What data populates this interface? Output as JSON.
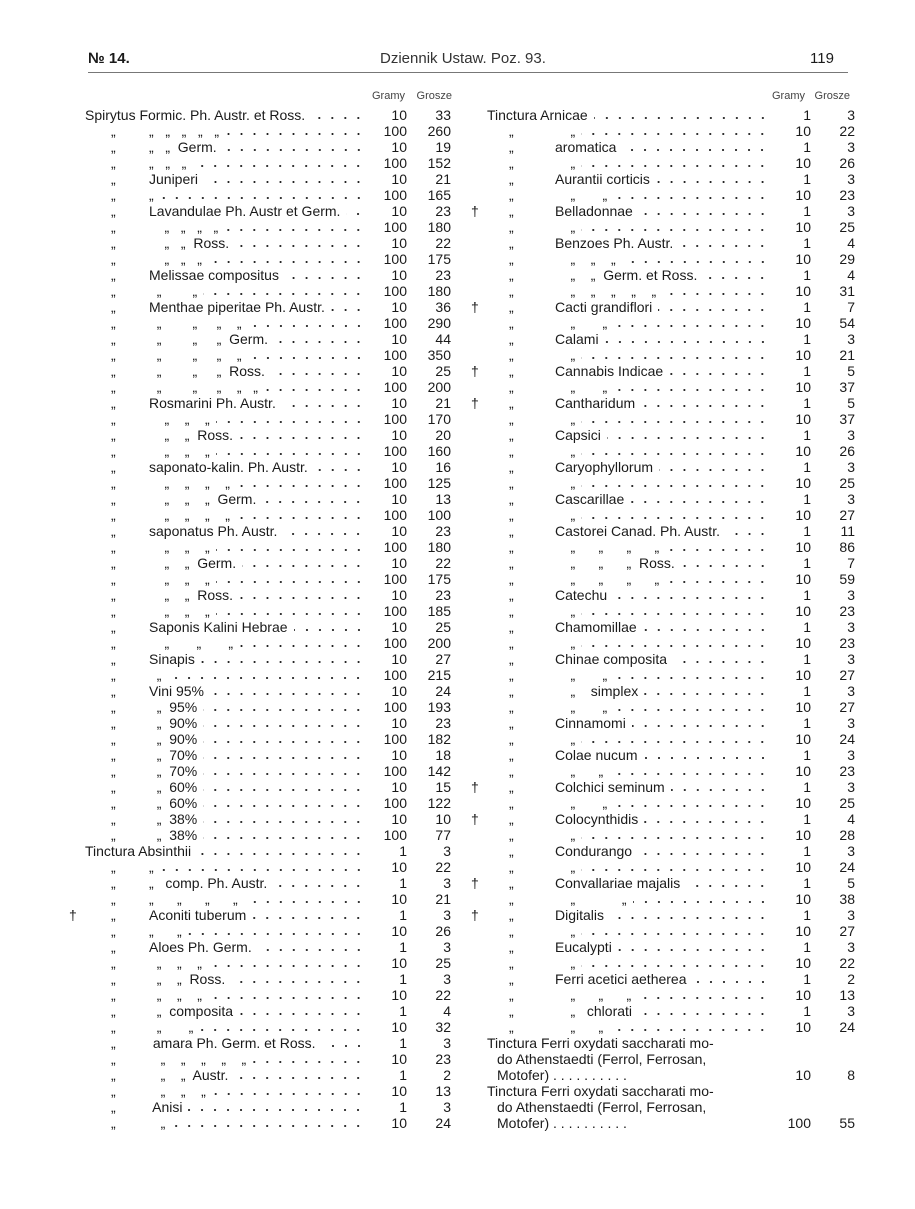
{
  "header": {
    "number": "№ 14.",
    "title": "Dziennik Ustaw. Poz. 93.",
    "page": "119"
  },
  "columns": {
    "gramy": "Gramy",
    "grosze": "Grosze"
  },
  "left": {
    "rows": [
      {
        "t": "Spirytus Formic. Ph. Austr. et Ross.",
        "g": "10",
        "c": "33"
      },
      {
        "q": "„",
        "t": "„   „   „   „   „",
        "g": "100",
        "c": "260"
      },
      {
        "q": "„",
        "t": "„   „  Germ.",
        "g": "10",
        "c": "19"
      },
      {
        "q": "„",
        "t": "„   „   „",
        "g": "100",
        "c": "152"
      },
      {
        "q": "„",
        "t": "Juniperi",
        "g": "10",
        "c": "21"
      },
      {
        "q": "„",
        "t": "„",
        "g": "100",
        "c": "165"
      },
      {
        "q": "„",
        "t": "Lavandulae Ph. Austr et Germ.",
        "g": "10",
        "c": "23"
      },
      {
        "q": "„",
        "t": "    „   „   „   „",
        "g": "100",
        "c": "180"
      },
      {
        "q": "„",
        "t": "    „   „  Ross.",
        "g": "10",
        "c": "22"
      },
      {
        "q": "„",
        "t": "    „   „   „",
        "g": "100",
        "c": "175"
      },
      {
        "q": "„",
        "t": "Melissae compositus",
        "g": "10",
        "c": "23"
      },
      {
        "q": "„",
        "t": "  „        „",
        "g": "100",
        "c": "180"
      },
      {
        "q": "„",
        "t": "Menthae piperitae Ph. Austr.",
        "g": "10",
        "c": "36"
      },
      {
        "q": "„",
        "t": "  „        „     „    „",
        "g": "100",
        "c": "290"
      },
      {
        "q": "„",
        "t": "  „        „     „  Germ.",
        "g": "10",
        "c": "44"
      },
      {
        "q": "„",
        "t": "  „        „     „    „",
        "g": "100",
        "c": "350"
      },
      {
        "q": "„",
        "t": "  „        „     „  Ross.",
        "g": "10",
        "c": "25"
      },
      {
        "q": "„",
        "t": "  „        „     „    „   „",
        "g": "100",
        "c": "200"
      },
      {
        "q": "„",
        "t": "Rosmarini Ph. Austr.",
        "g": "10",
        "c": "21"
      },
      {
        "q": "„",
        "t": "    „    „    „",
        "g": "100",
        "c": "170"
      },
      {
        "q": "„",
        "t": "    „    „  Ross.",
        "g": "10",
        "c": "20"
      },
      {
        "q": "„",
        "t": "    „    „    „",
        "g": "100",
        "c": "160"
      },
      {
        "q": "„",
        "t": "saponato-kalin. Ph. Austr.",
        "g": "10",
        "c": "16"
      },
      {
        "q": "„",
        "t": "    „    „    „    „",
        "g": "100",
        "c": "125"
      },
      {
        "q": "„",
        "t": "    „    „    „  Germ.",
        "g": "10",
        "c": "13"
      },
      {
        "q": "„",
        "t": "    „    „    „    „",
        "g": "100",
        "c": "100"
      },
      {
        "q": "„",
        "t": "saponatus Ph. Austr.",
        "g": "10",
        "c": "23"
      },
      {
        "q": "„",
        "t": "    „    „    „",
        "g": "100",
        "c": "180"
      },
      {
        "q": "„",
        "t": "    „    „  Germ.",
        "g": "10",
        "c": "22"
      },
      {
        "q": "„",
        "t": "    „    „    „",
        "g": "100",
        "c": "175"
      },
      {
        "q": "„",
        "t": "    „    „  Ross.",
        "g": "10",
        "c": "23"
      },
      {
        "q": "„",
        "t": "    „    „    „",
        "g": "100",
        "c": "185"
      },
      {
        "q": "„",
        "t": "Saponis Kalini Hebrae",
        "g": "10",
        "c": "25"
      },
      {
        "q": "„",
        "t": "    „       „       „",
        "g": "100",
        "c": "200"
      },
      {
        "q": "„",
        "t": "Sinapis",
        "g": "10",
        "c": "27"
      },
      {
        "q": "„",
        "t": "  „",
        "g": "100",
        "c": "215"
      },
      {
        "q": "„",
        "t": "Vini 95%",
        "g": "10",
        "c": "24"
      },
      {
        "q": "„",
        "t": "  „  95%",
        "g": "100",
        "c": "193"
      },
      {
        "q": "„",
        "t": "  „  90%",
        "g": "10",
        "c": "23"
      },
      {
        "q": "„",
        "t": "  „  90%",
        "g": "100",
        "c": "182"
      },
      {
        "q": "„",
        "t": "  „  70%",
        "g": "10",
        "c": "18"
      },
      {
        "q": "„",
        "t": "  „  70%",
        "g": "100",
        "c": "142"
      },
      {
        "q": "„",
        "t": "  „  60%",
        "g": "10",
        "c": "15"
      },
      {
        "q": "„",
        "t": "  „  60%",
        "g": "100",
        "c": "122"
      },
      {
        "q": "„",
        "t": "  „  38%",
        "g": "10",
        "c": "10"
      },
      {
        "q": "„",
        "t": "  „  38%",
        "g": "100",
        "c": "77"
      },
      {
        "t": "Tinctura Absinthii",
        "g": "1",
        "c": "3"
      },
      {
        "q": "„",
        "t": "„",
        "g": "10",
        "c": "22"
      },
      {
        "q": "„",
        "t": "„   comp. Ph. Austr.",
        "g": "1",
        "c": "3"
      },
      {
        "q": "„",
        "t": "„      „      „      „",
        "g": "10",
        "c": "21"
      },
      {
        "d": "†",
        "q": "„",
        "t": "Aconiti tuberum",
        "g": "1",
        "c": "3"
      },
      {
        "q": "„",
        "t": "„      „",
        "g": "10",
        "c": "26"
      },
      {
        "q": "„",
        "t": "Aloes Ph. Germ.",
        "g": "1",
        "c": "3"
      },
      {
        "q": "„",
        "t": "  „    „    „",
        "g": "10",
        "c": "25"
      },
      {
        "q": "„",
        "t": "  „    „  Ross.",
        "g": "1",
        "c": "3"
      },
      {
        "q": "„",
        "t": "  „    „    „",
        "g": "10",
        "c": "22"
      },
      {
        "q": "„",
        "t": "  „  composita",
        "g": "1",
        "c": "4"
      },
      {
        "q": "„",
        "t": "  „       „",
        "g": "10",
        "c": "32"
      },
      {
        "q": "„",
        "t": " amara Ph. Germ. et Ross.",
        "g": "1",
        "c": "3"
      },
      {
        "q": "„",
        "t": "   „    „    „    „    „",
        "g": "10",
        "c": "23"
      },
      {
        "q": "„",
        "t": "   „    „  Austr.",
        "g": "1",
        "c": "2"
      },
      {
        "q": "„",
        "t": "   „    „    „",
        "g": "10",
        "c": "13"
      },
      {
        "q": "„",
        "t": " Anisi",
        "g": "1",
        "c": "3"
      },
      {
        "q": "„",
        "t": "   „",
        "g": "10",
        "c": "24"
      }
    ]
  },
  "right": {
    "rows": [
      {
        "t": "Tinctura Arnicae",
        "g": "1",
        "c": "3"
      },
      {
        "q": "„",
        "t": "    „",
        "g": "10",
        "c": "22"
      },
      {
        "q": "„",
        "t": "aromatica",
        "g": "1",
        "c": "3"
      },
      {
        "q": "„",
        "t": "    „",
        "g": "10",
        "c": "26"
      },
      {
        "q": "„",
        "t": "Aurantii corticis",
        "g": "1",
        "c": "3"
      },
      {
        "q": "„",
        "t": "    „       „",
        "g": "10",
        "c": "23"
      },
      {
        "d": "†",
        "q": "„",
        "t": "Belladonnae",
        "g": "1",
        "c": "3"
      },
      {
        "q": "„",
        "t": "    „",
        "g": "10",
        "c": "25"
      },
      {
        "q": "„",
        "t": "Benzoes Ph. Austr.",
        "g": "1",
        "c": "4"
      },
      {
        "q": "„",
        "t": "    „    „    „",
        "g": "10",
        "c": "29"
      },
      {
        "q": "„",
        "t": "    „    „  Germ. et Ross.",
        "g": "1",
        "c": "4"
      },
      {
        "q": "„",
        "t": "    „    „    „    „    „",
        "g": "10",
        "c": "31"
      },
      {
        "d": "†",
        "q": "„",
        "t": "Cacti grandiflori",
        "g": "1",
        "c": "7"
      },
      {
        "q": "„",
        "t": "    „       „",
        "g": "10",
        "c": "54"
      },
      {
        "q": "„",
        "t": "Calami",
        "g": "1",
        "c": "3"
      },
      {
        "q": "„",
        "t": "    „",
        "g": "10",
        "c": "21"
      },
      {
        "d": "†",
        "q": "„",
        "t": "Cannabis Indicae",
        "g": "1",
        "c": "5"
      },
      {
        "q": "„",
        "t": "    „       „",
        "g": "10",
        "c": "37"
      },
      {
        "d": "†",
        "q": "„",
        "t": "Cantharidum",
        "g": "1",
        "c": "5"
      },
      {
        "q": "„",
        "t": "    „",
        "g": "10",
        "c": "37"
      },
      {
        "q": "„",
        "t": "Capsici",
        "g": "1",
        "c": "3"
      },
      {
        "q": "„",
        "t": "    „",
        "g": "10",
        "c": "26"
      },
      {
        "q": "„",
        "t": "Caryophyllorum",
        "g": "1",
        "c": "3"
      },
      {
        "q": "„",
        "t": "    „",
        "g": "10",
        "c": "25"
      },
      {
        "q": "„",
        "t": "Cascarillae",
        "g": "1",
        "c": "3"
      },
      {
        "q": "„",
        "t": "    „",
        "g": "10",
        "c": "27"
      },
      {
        "q": "„",
        "t": "Castorei Canad. Ph. Austr.",
        "g": "1",
        "c": "11"
      },
      {
        "q": "„",
        "t": "    „      „      „      „",
        "g": "10",
        "c": "86"
      },
      {
        "q": "„",
        "t": "    „      „      „  Ross.",
        "g": "1",
        "c": "7"
      },
      {
        "q": "„",
        "t": "    „      „      „      „",
        "g": "10",
        "c": "59"
      },
      {
        "q": "„",
        "t": "Catechu",
        "g": "1",
        "c": "3"
      },
      {
        "q": "„",
        "t": "    „",
        "g": "10",
        "c": "23"
      },
      {
        "q": "„",
        "t": "Chamomillae",
        "g": "1",
        "c": "3"
      },
      {
        "q": "„",
        "t": "    „",
        "g": "10",
        "c": "23"
      },
      {
        "q": "„",
        "t": "Chinae composita",
        "g": "1",
        "c": "3"
      },
      {
        "q": "„",
        "t": "    „       „",
        "g": "10",
        "c": "27"
      },
      {
        "q": "„",
        "t": "    „    simplex",
        "g": "1",
        "c": "3"
      },
      {
        "q": "„",
        "t": "    „       „",
        "g": "10",
        "c": "27"
      },
      {
        "q": "„",
        "t": "Cinnamomi",
        "g": "1",
        "c": "3"
      },
      {
        "q": "„",
        "t": "    „",
        "g": "10",
        "c": "24"
      },
      {
        "q": "„",
        "t": "Colae nucum",
        "g": "1",
        "c": "3"
      },
      {
        "q": "„",
        "t": "    „      „",
        "g": "10",
        "c": "23"
      },
      {
        "d": "†",
        "q": "„",
        "t": "Colchici seminum",
        "g": "1",
        "c": "3"
      },
      {
        "q": "„",
        "t": "    „       „",
        "g": "10",
        "c": "25"
      },
      {
        "d": "†",
        "q": "„",
        "t": "Colocynthidis",
        "g": "1",
        "c": "4"
      },
      {
        "q": "„",
        "t": "    „",
        "g": "10",
        "c": "28"
      },
      {
        "q": "„",
        "t": "Condurango",
        "g": "1",
        "c": "3"
      },
      {
        "q": "„",
        "t": "    „",
        "g": "10",
        "c": "24"
      },
      {
        "d": "†",
        "q": "„",
        "t": "Convallariae majalis",
        "g": "1",
        "c": "5"
      },
      {
        "q": "„",
        "t": "    „            „",
        "g": "10",
        "c": "38"
      },
      {
        "d": "†",
        "q": "„",
        "t": "Digitalis",
        "g": "1",
        "c": "3"
      },
      {
        "q": "„",
        "t": "    „",
        "g": "10",
        "c": "27"
      },
      {
        "q": "„",
        "t": "Eucalypti",
        "g": "1",
        "c": "3"
      },
      {
        "q": "„",
        "t": "    „",
        "g": "10",
        "c": "22"
      },
      {
        "q": "„",
        "t": "Ferri acetici aetherea",
        "g": "1",
        "c": "2"
      },
      {
        "q": "„",
        "t": "    „      „      „",
        "g": "10",
        "c": "13"
      },
      {
        "q": "„",
        "t": "    „   chlorati",
        "g": "1",
        "c": "3"
      },
      {
        "q": "„",
        "t": "    „      „",
        "g": "10",
        "c": "24"
      }
    ],
    "multi": [
      {
        "lines": [
          "Tinctura Ferri oxydati saccharati mo-",
          "do Athenstaedti (Ferrol, Ferrosan,",
          "Motofer) . . . . . . . . . ."
        ],
        "g": "10",
        "c": "8"
      },
      {
        "lines": [
          "Tinctura Ferri oxydati saccharati mo-",
          "do Athenstaedti (Ferrol, Ferrosan,",
          "Motofer) . . . . . . . . . ."
        ],
        "g": "100",
        "c": "55"
      }
    ]
  }
}
